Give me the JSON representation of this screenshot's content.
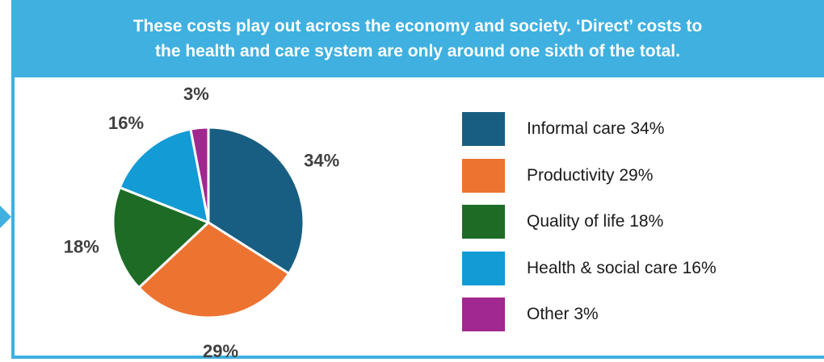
{
  "header": {
    "text": "These costs play out across the economy and society. ‘Direct’ costs to\nthe health and care system are only around one sixth of the total."
  },
  "chart_data": {
    "type": "pie",
    "title": "",
    "categories": [
      "Informal care",
      "Productivity",
      "Quality of life",
      "Health & social care",
      "Other"
    ],
    "values": [
      34,
      29,
      18,
      16,
      3
    ],
    "data_labels": [
      "34%",
      "29%",
      "18%",
      "16%",
      "3%"
    ],
    "legend_labels": [
      "Informal care 34%",
      "Productivity 29%",
      "Quality of life 18%",
      "Health & social care 16%",
      "Other 3%"
    ],
    "colors": [
      "#175e82",
      "#ed7331",
      "#1e6b25",
      "#139bd6",
      "#a0288f"
    ],
    "start_angle_deg": 0,
    "direction": "clockwise",
    "legend_position": "right"
  }
}
